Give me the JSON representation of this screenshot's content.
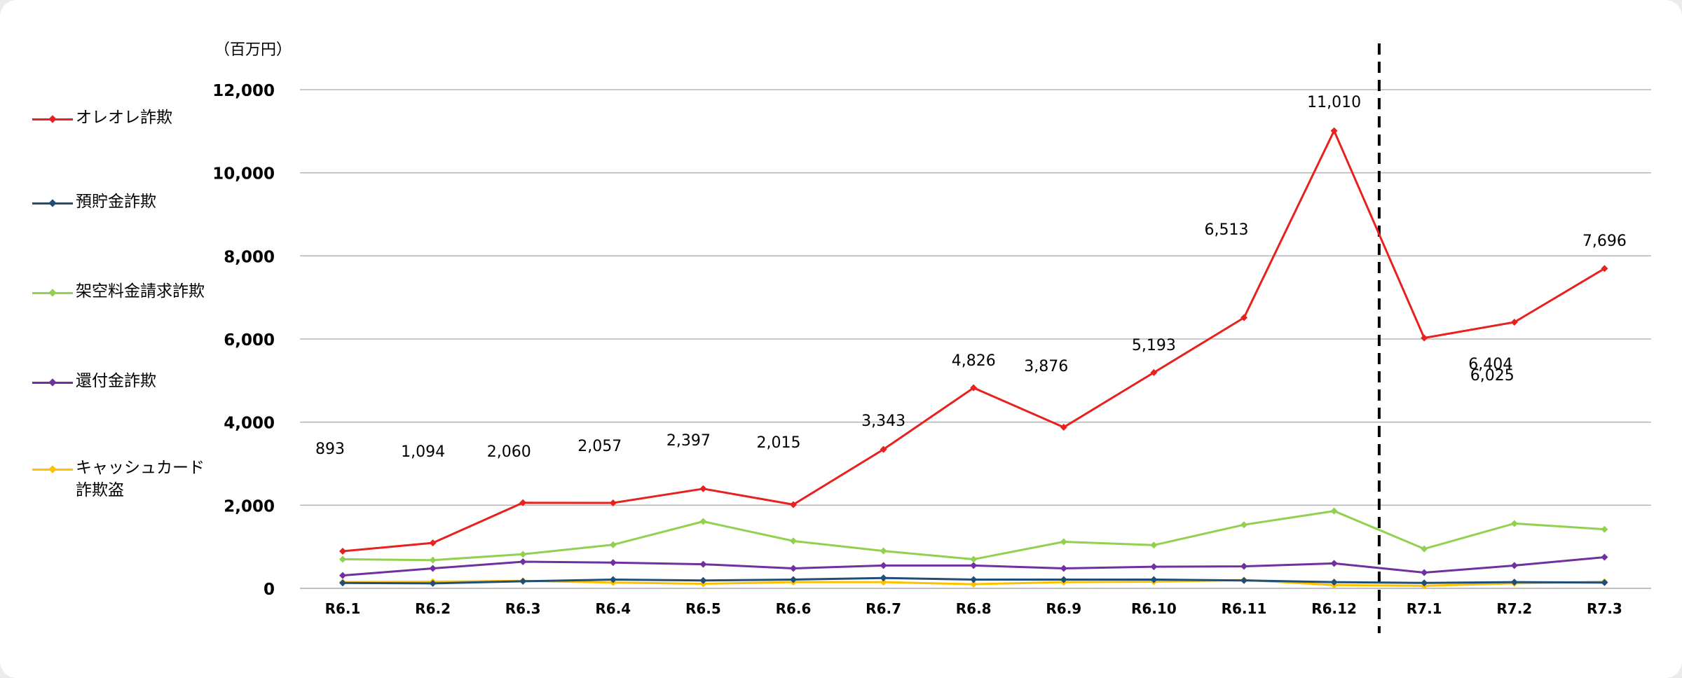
{
  "chart_data": {
    "type": "line",
    "unit_label": "（百万円）",
    "categories": [
      "R6.1",
      "R6.2",
      "R6.3",
      "R6.4",
      "R6.5",
      "R6.6",
      "R6.7",
      "R6.8",
      "R6.9",
      "R6.10",
      "R6.11",
      "R6.12",
      "R7.1",
      "R7.2",
      "R7.3"
    ],
    "ylim": [
      0,
      12000
    ],
    "yticks": [
      0,
      2000,
      4000,
      6000,
      8000,
      10000,
      12000
    ],
    "ytick_labels": [
      "0",
      "2,000",
      "4,000",
      "6,000",
      "8,000",
      "10,000",
      "12,000"
    ],
    "grid": true,
    "legend_position": "left",
    "divider_after_category": "R6.12",
    "series": [
      {
        "name": "オレオレ詐欺",
        "color": "#e8201e",
        "values": [
          893,
          1094,
          2060,
          2057,
          2397,
          2015,
          3343,
          4826,
          3876,
          5193,
          6513,
          11010,
          6025,
          6404,
          7696
        ],
        "data_labels": [
          "893",
          "1,094",
          "2,060",
          "2,057",
          "2,397",
          "2,015",
          "3,343",
          "4,826",
          "3,876",
          "5,193",
          "6,513",
          "11,010",
          "6,025",
          "6,404",
          "7,696"
        ]
      },
      {
        "name": "預貯金詐欺",
        "color": "#1f4e79",
        "values": [
          130,
          120,
          170,
          210,
          190,
          210,
          250,
          210,
          210,
          210,
          190,
          150,
          130,
          150,
          140
        ]
      },
      {
        "name": "架空料金請求詐欺",
        "color": "#92d050",
        "values": [
          700,
          680,
          820,
          1050,
          1610,
          1140,
          900,
          700,
          1120,
          1040,
          1530,
          1860,
          950,
          1560,
          1420
        ]
      },
      {
        "name": "還付金詐欺",
        "color": "#7030a0",
        "values": [
          310,
          480,
          640,
          620,
          580,
          480,
          550,
          550,
          480,
          520,
          530,
          600,
          380,
          550,
          750
        ]
      },
      {
        "name": "キャッシュカード\n詐欺盗",
        "color": "#ffc000",
        "values": [
          150,
          160,
          180,
          140,
          110,
          150,
          150,
          100,
          150,
          160,
          200,
          80,
          60,
          120,
          160
        ]
      }
    ]
  }
}
